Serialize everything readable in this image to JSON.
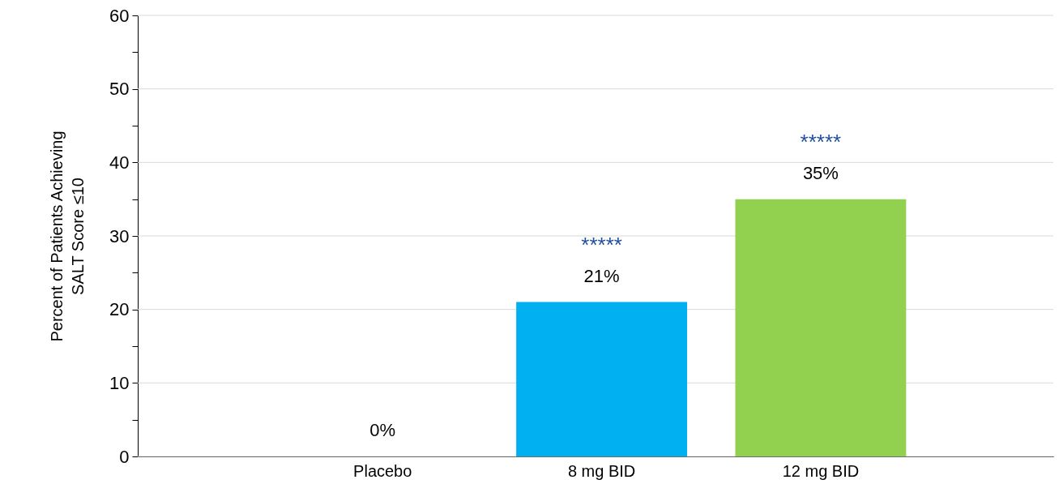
{
  "chart_data": {
    "type": "bar",
    "ylabel": "Percent of Patients Achieving\nSALT Score ≤10",
    "categories": [
      "Placebo",
      "8 mg BID",
      "12 mg BID"
    ],
    "values": [
      0,
      21,
      35
    ],
    "colors": [
      "#a6a6a6",
      "#00b0f0",
      "#92d050"
    ],
    "value_labels": [
      "0%",
      "21%",
      "35%"
    ],
    "ylim": [
      0,
      60
    ],
    "yticks": [
      0,
      {
        "value": 5,
        "label": null
      },
      10,
      {
        "value": 15,
        "label": null
      },
      20,
      {
        "value": 25,
        "label": null
      },
      30,
      {
        "value": 35,
        "label": null
      },
      40,
      {
        "value": 45,
        "label": null
      },
      50,
      {
        "value": 55,
        "label": null
      },
      60
    ],
    "grid": "y",
    "annotations": [
      "*****",
      "*****"
    ]
  }
}
